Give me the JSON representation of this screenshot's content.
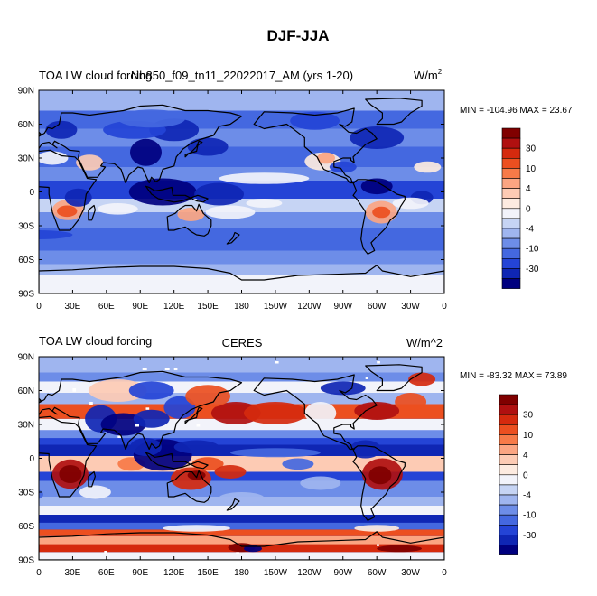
{
  "figure_title": "DJF-JJA",
  "chart_data": [
    {
      "type": "heatmap",
      "title_left": "TOA LW cloud forcing",
      "title_center": "Nb850_f09_tn11_22022017_AM (yrs 1-20)",
      "units_base": "W/m",
      "units_sup": "2",
      "stats": "MIN = -104.96 MAX =  23.67",
      "xlim": [
        0,
        360
      ],
      "ylim": [
        -90,
        90
      ],
      "x_ticks": [
        "0",
        "30E",
        "60E",
        "90E",
        "120E",
        "150E",
        "180",
        "150W",
        "120W",
        "90W",
        "60W",
        "30W",
        "0"
      ],
      "y_ticks": [
        "90N",
        "60N",
        "30N",
        "0",
        "30S",
        "60S",
        "90S"
      ],
      "colorbar_labels": [
        "30",
        "10",
        "4",
        "0",
        "-4",
        "-10",
        "-30"
      ]
    },
    {
      "type": "heatmap",
      "title_left": "TOA LW cloud forcing",
      "title_center": "CERES",
      "units": "W/m^2",
      "stats": "MIN = -83.32 MAX =  73.89",
      "xlim": [
        0,
        360
      ],
      "ylim": [
        -90,
        90
      ],
      "x_ticks": [
        "0",
        "30E",
        "60E",
        "90E",
        "120E",
        "150E",
        "180",
        "150W",
        "120W",
        "90W",
        "60W",
        "30W",
        "0"
      ],
      "y_ticks": [
        "90N",
        "60N",
        "30N",
        "0",
        "30S",
        "60S",
        "90S"
      ],
      "colorbar_labels": [
        "30",
        "10",
        "4",
        "0",
        "-4",
        "-10",
        "-30"
      ]
    }
  ],
  "colors": {
    "palette": [
      "#800000",
      "#b01010",
      "#d52a0e",
      "#ec4f20",
      "#f77a48",
      "#fba582",
      "#fdcbb4",
      "#fdebe0",
      "#f2f3fa",
      "#c6d4f4",
      "#9fb5ef",
      "#6d8de8",
      "#4468e0",
      "#2444d6",
      "#0f26b4",
      "#00007f"
    ]
  }
}
